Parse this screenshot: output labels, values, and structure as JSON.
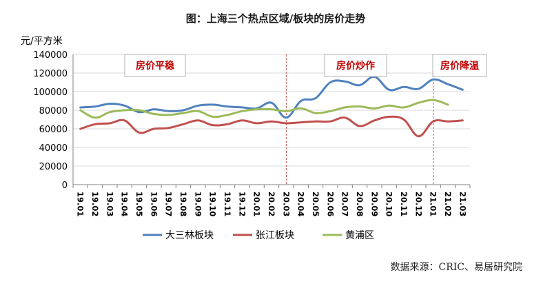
{
  "chart_data": {
    "type": "line",
    "title": "图：上海三个热点区域/板块的房价走势",
    "ylabel": "元/平方米",
    "xlabel": "",
    "ylim": [
      0,
      140000
    ],
    "yticks": [
      0,
      20000,
      40000,
      60000,
      80000,
      100000,
      120000,
      140000
    ],
    "grid": "horizontal",
    "legend_position": "bottom",
    "categories": [
      "19.01",
      "19.02",
      "19.03",
      "19.04",
      "19.05",
      "19.06",
      "19.07",
      "19.08",
      "19.09",
      "19.10",
      "19.11",
      "19.12",
      "20.01",
      "20.02",
      "20.03",
      "20.04",
      "20.05",
      "20.06",
      "20.07",
      "20.08",
      "20.09",
      "20.10",
      "20.11",
      "20.12",
      "21.01",
      "21.02",
      "21.03"
    ],
    "series": [
      {
        "name": "大三林板块",
        "color": "#4f81bd",
        "values": [
          83000,
          84000,
          87000,
          85000,
          78000,
          81000,
          79000,
          80000,
          85000,
          86000,
          84000,
          83000,
          82000,
          88000,
          72000,
          90000,
          93000,
          110000,
          111000,
          107000,
          116000,
          102000,
          105000,
          103000,
          113000,
          108000,
          102000
        ]
      },
      {
        "name": "张江板块",
        "color": "#c0504d",
        "values": [
          60000,
          65000,
          66000,
          69000,
          56000,
          60000,
          61000,
          65000,
          69000,
          64000,
          65000,
          69000,
          66000,
          68000,
          66000,
          67000,
          68000,
          68000,
          72000,
          63000,
          69000,
          73000,
          70000,
          52000,
          68000,
          68000,
          69000
        ]
      },
      {
        "name": "黄浦区",
        "color": "#9bbb59",
        "values": [
          80000,
          72000,
          78000,
          80000,
          80000,
          76000,
          75000,
          77000,
          79000,
          73000,
          75000,
          79000,
          81000,
          81000,
          79000,
          82000,
          77000,
          79000,
          83000,
          84000,
          82000,
          85000,
          83000,
          88000,
          91000,
          86000,
          null
        ]
      }
    ],
    "annotations": [
      {
        "text": "房价平稳"
      },
      {
        "text": "房价炒作"
      },
      {
        "text": "房价降温"
      }
    ],
    "dividers": [
      "20.03",
      "21.01"
    ],
    "source": "数据来源：CRIC、易居研究院"
  }
}
